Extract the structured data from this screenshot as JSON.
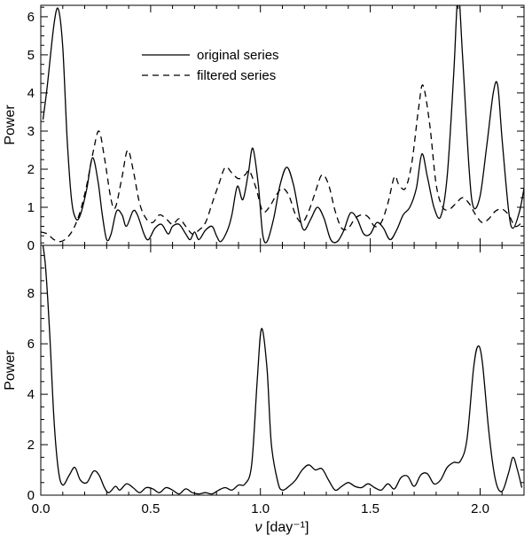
{
  "figure": {
    "background": "#ffffff",
    "line_color": "#000000",
    "xlabel_nu": "ν",
    "xlabel_unit": " [day⁻¹]"
  },
  "chart_data": [
    {
      "type": "line",
      "panel": "top",
      "title": "",
      "ylabel": "Power",
      "xlim": [
        0,
        2.2
      ],
      "ylim": [
        0,
        6.3
      ],
      "yticks": [
        0,
        1,
        2,
        3,
        4,
        5,
        6
      ],
      "xticks": [
        "0.0",
        "0.5",
        "1.0",
        "1.5",
        "2.0"
      ],
      "x_minor_step": 0.1,
      "y_minor_step": 0.25,
      "show_x_tick_labels": false,
      "grid": false,
      "legend_position": "upper-left-inset",
      "series": [
        {
          "label": "original series",
          "style": "solid",
          "points": [
            [
              0.01,
              3.3
            ],
            [
              0.03,
              4.2
            ],
            [
              0.06,
              5.8
            ],
            [
              0.08,
              6.2
            ],
            [
              0.1,
              5.2
            ],
            [
              0.12,
              2.8
            ],
            [
              0.14,
              1.2
            ],
            [
              0.16,
              0.7
            ],
            [
              0.18,
              0.8
            ],
            [
              0.21,
              1.5
            ],
            [
              0.235,
              2.3
            ],
            [
              0.26,
              1.7
            ],
            [
              0.28,
              0.8
            ],
            [
              0.3,
              0.15
            ],
            [
              0.32,
              0.3
            ],
            [
              0.345,
              0.9
            ],
            [
              0.37,
              0.8
            ],
            [
              0.39,
              0.5
            ],
            [
              0.42,
              0.9
            ],
            [
              0.44,
              0.8
            ],
            [
              0.47,
              0.3
            ],
            [
              0.49,
              0.15
            ],
            [
              0.52,
              0.45
            ],
            [
              0.55,
              0.55
            ],
            [
              0.58,
              0.3
            ],
            [
              0.6,
              0.5
            ],
            [
              0.63,
              0.55
            ],
            [
              0.66,
              0.3
            ],
            [
              0.68,
              0.15
            ],
            [
              0.7,
              0.35
            ],
            [
              0.72,
              0.15
            ],
            [
              0.75,
              0.4
            ],
            [
              0.78,
              0.5
            ],
            [
              0.8,
              0.25
            ],
            [
              0.82,
              0.1
            ],
            [
              0.85,
              0.4
            ],
            [
              0.87,
              0.8
            ],
            [
              0.895,
              1.55
            ],
            [
              0.92,
              1.2
            ],
            [
              0.945,
              1.9
            ],
            [
              0.965,
              2.55
            ],
            [
              0.99,
              1.6
            ],
            [
              1.01,
              0.3
            ],
            [
              1.03,
              0.1
            ],
            [
              1.06,
              0.7
            ],
            [
              1.09,
              1.6
            ],
            [
              1.12,
              2.05
            ],
            [
              1.15,
              1.6
            ],
            [
              1.18,
              0.7
            ],
            [
              1.2,
              0.4
            ],
            [
              1.23,
              0.7
            ],
            [
              1.26,
              1.0
            ],
            [
              1.29,
              0.7
            ],
            [
              1.32,
              0.15
            ],
            [
              1.35,
              0.1
            ],
            [
              1.38,
              0.4
            ],
            [
              1.41,
              0.85
            ],
            [
              1.44,
              0.7
            ],
            [
              1.47,
              0.3
            ],
            [
              1.5,
              0.3
            ],
            [
              1.53,
              0.6
            ],
            [
              1.56,
              0.45
            ],
            [
              1.59,
              0.15
            ],
            [
              1.62,
              0.4
            ],
            [
              1.65,
              0.8
            ],
            [
              1.68,
              1.0
            ],
            [
              1.71,
              1.5
            ],
            [
              1.735,
              2.4
            ],
            [
              1.76,
              1.8
            ],
            [
              1.79,
              1.0
            ],
            [
              1.82,
              0.75
            ],
            [
              1.85,
              1.8
            ],
            [
              1.88,
              4.5
            ],
            [
              1.9,
              6.6
            ],
            [
              1.92,
              5.0
            ],
            [
              1.95,
              2.0
            ],
            [
              1.97,
              1.0
            ],
            [
              2.0,
              1.3
            ],
            [
              2.03,
              2.6
            ],
            [
              2.06,
              4.0
            ],
            [
              2.08,
              4.2
            ],
            [
              2.1,
              2.8
            ],
            [
              2.13,
              0.9
            ],
            [
              2.15,
              0.45
            ],
            [
              2.18,
              0.9
            ],
            [
              2.2,
              1.5
            ]
          ]
        },
        {
          "label": "filtered series",
          "style": "dashed",
          "points": [
            [
              0.0,
              0.35
            ],
            [
              0.03,
              0.3
            ],
            [
              0.06,
              0.15
            ],
            [
              0.09,
              0.1
            ],
            [
              0.12,
              0.2
            ],
            [
              0.15,
              0.45
            ],
            [
              0.18,
              0.9
            ],
            [
              0.21,
              1.6
            ],
            [
              0.24,
              2.5
            ],
            [
              0.265,
              3.0
            ],
            [
              0.29,
              2.3
            ],
            [
              0.32,
              1.2
            ],
            [
              0.34,
              1.0
            ],
            [
              0.37,
              1.8
            ],
            [
              0.395,
              2.5
            ],
            [
              0.42,
              2.0
            ],
            [
              0.45,
              1.1
            ],
            [
              0.48,
              0.7
            ],
            [
              0.51,
              0.6
            ],
            [
              0.54,
              0.8
            ],
            [
              0.57,
              0.7
            ],
            [
              0.6,
              0.55
            ],
            [
              0.63,
              0.7
            ],
            [
              0.66,
              0.5
            ],
            [
              0.69,
              0.3
            ],
            [
              0.72,
              0.4
            ],
            [
              0.75,
              0.6
            ],
            [
              0.78,
              1.1
            ],
            [
              0.81,
              1.6
            ],
            [
              0.84,
              2.05
            ],
            [
              0.87,
              1.9
            ],
            [
              0.9,
              1.75
            ],
            [
              0.93,
              1.85
            ],
            [
              0.95,
              1.95
            ],
            [
              0.98,
              1.5
            ],
            [
              1.01,
              0.9
            ],
            [
              1.04,
              1.0
            ],
            [
              1.07,
              1.3
            ],
            [
              1.1,
              1.5
            ],
            [
              1.13,
              1.3
            ],
            [
              1.16,
              0.8
            ],
            [
              1.19,
              0.6
            ],
            [
              1.22,
              0.9
            ],
            [
              1.25,
              1.4
            ],
            [
              1.28,
              1.85
            ],
            [
              1.31,
              1.6
            ],
            [
              1.34,
              0.9
            ],
            [
              1.37,
              0.45
            ],
            [
              1.4,
              0.45
            ],
            [
              1.43,
              0.7
            ],
            [
              1.46,
              0.8
            ],
            [
              1.49,
              0.75
            ],
            [
              1.52,
              0.5
            ],
            [
              1.55,
              0.6
            ],
            [
              1.58,
              1.1
            ],
            [
              1.61,
              1.8
            ],
            [
              1.63,
              1.6
            ],
            [
              1.66,
              1.5
            ],
            [
              1.69,
              2.2
            ],
            [
              1.72,
              3.6
            ],
            [
              1.74,
              4.2
            ],
            [
              1.77,
              3.2
            ],
            [
              1.8,
              1.6
            ],
            [
              1.83,
              1.0
            ],
            [
              1.86,
              0.95
            ],
            [
              1.89,
              1.1
            ],
            [
              1.92,
              1.25
            ],
            [
              1.95,
              1.1
            ],
            [
              1.98,
              0.8
            ],
            [
              2.01,
              0.6
            ],
            [
              2.04,
              0.7
            ],
            [
              2.07,
              0.9
            ],
            [
              2.1,
              0.95
            ],
            [
              2.13,
              0.8
            ],
            [
              2.16,
              0.5
            ],
            [
              2.19,
              0.6
            ]
          ]
        }
      ]
    },
    {
      "type": "line",
      "panel": "bottom",
      "title": "",
      "ylabel": "Power",
      "xlim": [
        0,
        2.2
      ],
      "ylim": [
        0,
        9.9
      ],
      "yticks": [
        0,
        2,
        4,
        6,
        8
      ],
      "xticks": [
        "0.0",
        "0.5",
        "1.0",
        "1.5",
        "2.0"
      ],
      "x_minor_step": 0.1,
      "y_minor_step": 0.5,
      "show_x_tick_labels": true,
      "grid": false,
      "series": [
        {
          "label": "",
          "style": "solid",
          "points": [
            [
              0.0,
              10.4
            ],
            [
              0.02,
              9.2
            ],
            [
              0.04,
              6.5
            ],
            [
              0.06,
              3.0
            ],
            [
              0.08,
              1.0
            ],
            [
              0.1,
              0.4
            ],
            [
              0.13,
              0.8
            ],
            [
              0.155,
              1.1
            ],
            [
              0.18,
              0.6
            ],
            [
              0.21,
              0.5
            ],
            [
              0.24,
              0.95
            ],
            [
              0.265,
              0.8
            ],
            [
              0.29,
              0.3
            ],
            [
              0.31,
              0.1
            ],
            [
              0.34,
              0.35
            ],
            [
              0.36,
              0.2
            ],
            [
              0.39,
              0.45
            ],
            [
              0.42,
              0.3
            ],
            [
              0.45,
              0.1
            ],
            [
              0.48,
              0.3
            ],
            [
              0.51,
              0.25
            ],
            [
              0.54,
              0.1
            ],
            [
              0.57,
              0.3
            ],
            [
              0.6,
              0.2
            ],
            [
              0.63,
              0.05
            ],
            [
              0.66,
              0.25
            ],
            [
              0.69,
              0.1
            ],
            [
              0.72,
              0.05
            ],
            [
              0.75,
              0.1
            ],
            [
              0.78,
              0.05
            ],
            [
              0.81,
              0.2
            ],
            [
              0.84,
              0.3
            ],
            [
              0.87,
              0.2
            ],
            [
              0.9,
              0.4
            ],
            [
              0.93,
              0.45
            ],
            [
              0.96,
              1.2
            ],
            [
              0.985,
              4.5
            ],
            [
              1.005,
              6.6
            ],
            [
              1.03,
              5.0
            ],
            [
              1.05,
              2.0
            ],
            [
              1.08,
              0.5
            ],
            [
              1.1,
              0.2
            ],
            [
              1.13,
              0.35
            ],
            [
              1.16,
              0.6
            ],
            [
              1.19,
              1.0
            ],
            [
              1.22,
              1.2
            ],
            [
              1.25,
              1.0
            ],
            [
              1.28,
              1.05
            ],
            [
              1.31,
              0.6
            ],
            [
              1.34,
              0.2
            ],
            [
              1.37,
              0.35
            ],
            [
              1.4,
              0.5
            ],
            [
              1.43,
              0.35
            ],
            [
              1.46,
              0.3
            ],
            [
              1.49,
              0.45
            ],
            [
              1.52,
              0.3
            ],
            [
              1.55,
              0.2
            ],
            [
              1.58,
              0.45
            ],
            [
              1.61,
              0.25
            ],
            [
              1.64,
              0.7
            ],
            [
              1.67,
              0.75
            ],
            [
              1.7,
              0.35
            ],
            [
              1.73,
              0.8
            ],
            [
              1.76,
              0.85
            ],
            [
              1.79,
              0.45
            ],
            [
              1.82,
              0.6
            ],
            [
              1.85,
              1.1
            ],
            [
              1.88,
              1.3
            ],
            [
              1.91,
              1.35
            ],
            [
              1.94,
              2.2
            ],
            [
              1.97,
              5.0
            ],
            [
              1.99,
              5.9
            ],
            [
              2.01,
              5.3
            ],
            [
              2.04,
              2.5
            ],
            [
              2.07,
              0.6
            ],
            [
              2.1,
              0.15
            ],
            [
              2.13,
              0.9
            ],
            [
              2.15,
              1.5
            ],
            [
              2.17,
              1.0
            ],
            [
              2.19,
              0.3
            ]
          ]
        }
      ]
    }
  ]
}
